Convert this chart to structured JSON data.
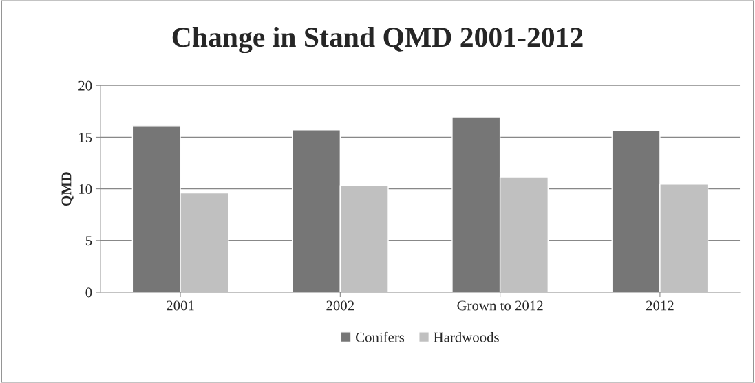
{
  "chart_data": {
    "type": "bar",
    "title": "Change in Stand QMD 2001-2012",
    "ylabel": "QMD",
    "categories": [
      "2001",
      "2002",
      "Grown to 2012",
      "2012"
    ],
    "series": [
      {
        "name": "Conifers",
        "color": "#767676",
        "values": [
          16.1,
          15.7,
          16.95,
          15.6
        ]
      },
      {
        "name": "Hardwoods",
        "color": "#c0c0c0",
        "values": [
          9.6,
          10.3,
          11.1,
          10.45
        ]
      }
    ],
    "ylim": [
      0,
      20
    ],
    "yticks": [
      0,
      5,
      10,
      15,
      20
    ],
    "grid": "y",
    "legend": "bottom"
  }
}
